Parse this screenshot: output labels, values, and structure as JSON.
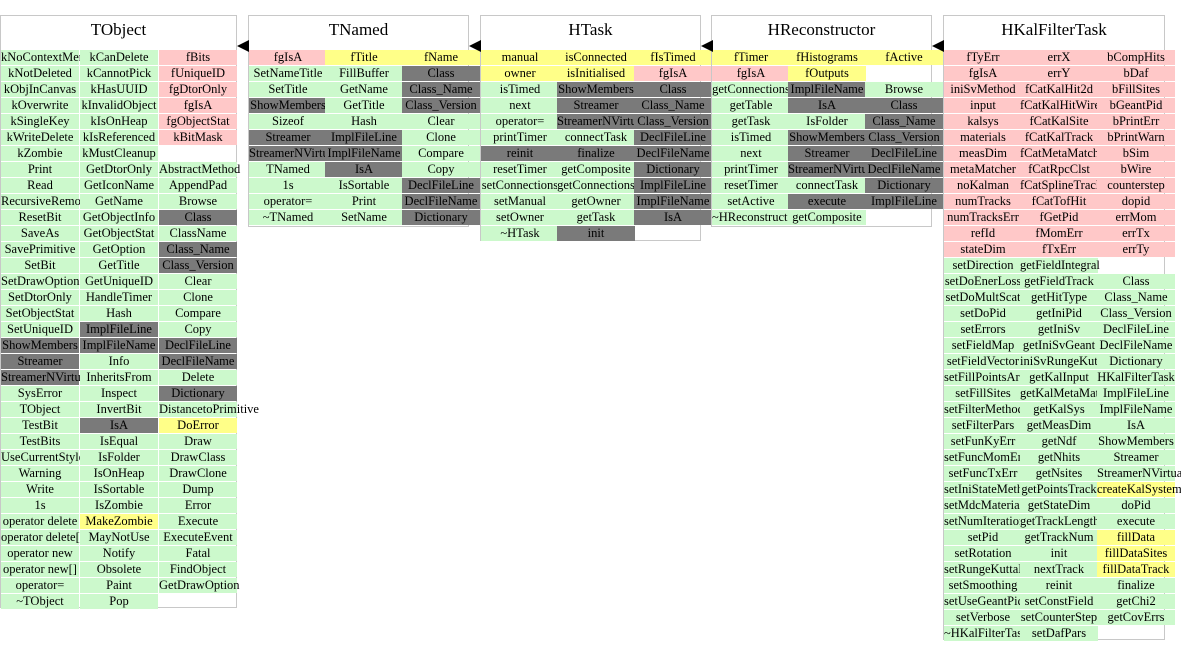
{
  "classes": [
    {
      "name": "TObject",
      "columns": [
        [
          "kNoContextMenu",
          "kNotDeleted",
          "kObjInCanvas",
          "kOverwrite",
          "kSingleKey",
          "kWriteDelete",
          "kZombie",
          "Print",
          "Read",
          "RecursiveRemove",
          "ResetBit",
          "SaveAs",
          "SavePrimitive",
          "SetBit",
          "SetDrawOption",
          "SetDtorOnly",
          "SetObjectStat",
          "SetUniqueID",
          "ShowMembers",
          "Streamer",
          "StreamerNVirtual",
          "SysError",
          "TObject",
          "TestBit",
          "TestBits",
          "UseCurrentStyle",
          "Warning",
          "Write",
          "1s",
          "operator delete",
          "operator delete[]",
          "operator new",
          "operator new[]",
          "operator=",
          "~TObject"
        ],
        [
          "kCanDelete",
          "kCannotPick",
          "kHasUUID",
          "kInvalidObject",
          "kIsOnHeap",
          "kIsReferenced",
          "kMustCleanup",
          "GetDtorOnly",
          "GetIconName",
          "GetName",
          "GetObjectInfo",
          "GetObjectStat",
          "GetOption",
          "GetTitle",
          "GetUniqueID",
          "HandleTimer",
          "Hash",
          "ImplFileLine",
          "ImplFileName",
          "Info",
          "InheritsFrom",
          "Inspect",
          "InvertBit",
          "IsA",
          "IsEqual",
          "IsFolder",
          "IsOnHeap",
          "IsSortable",
          "IsZombie",
          "MakeZombie",
          "MayNotUse",
          "Notify",
          "Obsolete",
          "Paint",
          "Pop"
        ],
        [
          "fBits",
          "fUniqueID",
          "fgDtorOnly",
          "fgIsA",
          "fgObjectStat",
          "kBitMask",
          "",
          "AbstractMethod",
          "AppendPad",
          "Browse",
          "Class",
          "ClassName",
          "Class_Name",
          "Class_Version",
          "Clear",
          "Clone",
          "Compare",
          "Copy",
          "DeclFileLine",
          "DeclFileName",
          "Delete",
          "Dictionary",
          "DistancetoPrimitive",
          "DoError",
          "Draw",
          "DrawClass",
          "DrawClone",
          "Dump",
          "Error",
          "Execute",
          "ExecuteEvent",
          "Fatal",
          "FindObject",
          "GetDrawOption"
        ]
      ]
    },
    {
      "name": "TNamed",
      "columns": [
        [
          "fgIsA",
          "SetNameTitle",
          "SetTitle",
          "ShowMembers",
          "Sizeof",
          "Streamer",
          "StreamerNVirtual",
          "TNamed",
          "1s",
          "operator=",
          "~TNamed"
        ],
        [
          "fTitle",
          "FillBuffer",
          "GetName",
          "GetTitle",
          "Hash",
          "ImplFileLine",
          "ImplFileName",
          "IsA",
          "IsSortable",
          "Print",
          "SetName"
        ],
        [
          "fName",
          "Class",
          "Class_Name",
          "Class_Version",
          "Clear",
          "Clone",
          "Compare",
          "Copy",
          "DeclFileLine",
          "DeclFileName",
          "Dictionary"
        ]
      ]
    },
    {
      "name": "HTask",
      "columns": [
        [
          "manual",
          "owner",
          "isTimed",
          "next",
          "operator=",
          "printTimer",
          "reinit",
          "resetTimer",
          "setConnections",
          "setManual",
          "setOwner",
          "~HTask"
        ],
        [
          "isConnected",
          "isInitialised",
          "ShowMembers",
          "Streamer",
          "StreamerNVirtual",
          "connectTask",
          "finalize",
          "getComposite",
          "getConnections",
          "getOwner",
          "getTask",
          "init"
        ],
        [
          "fIsTimed",
          "fgIsA",
          "Class",
          "Class_Name",
          "Class_Version",
          "DeclFileLine",
          "DeclFileName",
          "Dictionary",
          "ImplFileLine",
          "ImplFileName",
          "IsA"
        ]
      ]
    },
    {
      "name": "HReconstructor",
      "columns": [
        [
          "fTimer",
          "fgIsA",
          "getConnections",
          "getTable",
          "getTask",
          "isTimed",
          "next",
          "printTimer",
          "resetTimer",
          "setActive",
          "~HReconstructor"
        ],
        [
          "fHistograms",
          "fOutputs",
          "ImplFileName",
          "IsA",
          "IsFolder",
          "ShowMembers",
          "Streamer",
          "StreamerNVirtual",
          "connectTask",
          "execute",
          "getComposite"
        ],
        [
          "fActive",
          "",
          "Browse",
          "Class",
          "Class_Name",
          "Class_Version",
          "DeclFileLine",
          "DeclFileName",
          "Dictionary",
          "ImplFileLine"
        ]
      ]
    },
    {
      "name": "HKalFilterTask",
      "columns": [
        [
          "fTyErr",
          "fgIsA",
          "iniSvMethod",
          "input",
          "kalsys",
          "materials",
          "measDim",
          "metaMatcher",
          "noKalman",
          "numTracks",
          "numTracksErr",
          "refId",
          "stateDim",
          "setDirection",
          "setDoEnerLoss",
          "setDoMultScat",
          "setDoPid",
          "setErrors",
          "setFieldMap",
          "setFieldVector",
          "setFillPointsArrays",
          "setFillSites",
          "setFilterMethod",
          "setFilterPars",
          "setFunKyErr",
          "setFuncMomErr",
          "setFuncTxErr",
          "setIniStateMethod",
          "setMdcMaterials",
          "setNumIterations",
          "setPid",
          "setRotation",
          "setRungeKuttaParams",
          "setSmoothing",
          "setUseGeantPid",
          "setVerbose",
          "~HKalFilterTask"
        ],
        [
          "errX",
          "errY",
          "fCatKalHit2d",
          "fCatKalHitWire",
          "fCatKalSite",
          "fCatKalTrack",
          "fCatMetaMatch",
          "fCatRpcClst",
          "fCatSplineTrack",
          "fCatTofHit",
          "fGetPid",
          "fMomErr",
          "fTxErr",
          "getFieldIntegral",
          "getFieldTrack",
          "getHitType",
          "getIniPid",
          "getIniSv",
          "getIniSvGeant",
          "iniSvRungeKutta",
          "getKalInput",
          "getKalMetaMatcher",
          "getKalSys",
          "getMeasDim",
          "getNdf",
          "getNhits",
          "getNsites",
          "getPointsTrack",
          "getStateDim",
          "getTrackLength",
          "getTrackNum",
          "init",
          "nextTrack",
          "reinit",
          "setConstField",
          "setCounterStep",
          "setDafPars"
        ],
        [
          "bCompHits",
          "bDaf",
          "bFillSites",
          "bGeantPid",
          "bPrintErr",
          "bPrintWarn",
          "bSim",
          "bWire",
          "counterstep",
          "dopid",
          "errMom",
          "errTx",
          "errTy",
          "",
          "Class",
          "Class_Name",
          "Class_Version",
          "DeclFileLine",
          "DeclFileName",
          "Dictionary",
          "HKalFilterTask",
          "ImplFileLine",
          "ImplFileName",
          "IsA",
          "ShowMembers",
          "Streamer",
          "StreamerNVirtual",
          "createKalSystem",
          "doPid",
          "execute",
          "fillData",
          "fillDataSites",
          "fillDataTrack",
          "finalize",
          "getChi2",
          "getCovErrs"
        ]
      ]
    }
  ],
  "colors": {
    "public_method": "#ccf9cc",
    "data_member": "#ffc8c8",
    "protected": "#ffff88",
    "inherited_special": "#7a7a7a",
    "border": "#c8c8c8",
    "arrow": "#000000"
  }
}
